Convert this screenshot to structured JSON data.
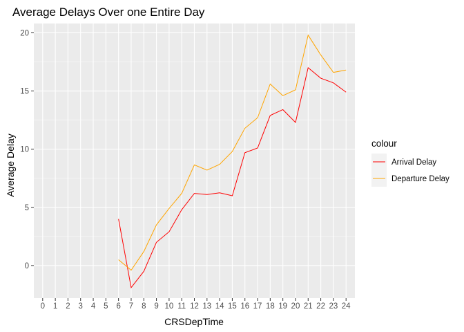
{
  "chart_data": {
    "type": "line",
    "title": "Average Delays Over one Entire Day",
    "xlabel": "CRSDepTime",
    "ylabel": "Average Delay",
    "x_ticks": [
      0,
      1,
      2,
      3,
      4,
      5,
      6,
      7,
      8,
      9,
      10,
      11,
      12,
      13,
      14,
      15,
      16,
      17,
      18,
      19,
      20,
      21,
      22,
      23,
      24
    ],
    "y_ticks": [
      0,
      5,
      10,
      15,
      20
    ],
    "xlim": [
      -0.7,
      24.7
    ],
    "ylim": [
      -2.8,
      20.8
    ],
    "grid": true,
    "legend": {
      "title": "colour",
      "position": "right"
    },
    "series": [
      {
        "name": "Arrival Delay",
        "color": "#ff0000",
        "x": [
          6,
          7,
          8,
          9,
          10,
          11,
          12,
          13,
          14,
          15,
          16,
          17,
          18,
          19,
          20,
          21,
          22,
          23,
          24
        ],
        "y": [
          4.0,
          -1.9,
          -0.5,
          2.0,
          2.9,
          4.8,
          6.2,
          6.1,
          6.25,
          6.0,
          9.7,
          10.1,
          12.9,
          13.4,
          12.3,
          17.0,
          16.1,
          15.7,
          14.9
        ]
      },
      {
        "name": "Departure Delay",
        "color": "#ffa500",
        "x": [
          6,
          7,
          8,
          9,
          10,
          11,
          12,
          13,
          14,
          15,
          16,
          17,
          18,
          19,
          20,
          21,
          22,
          23,
          24
        ],
        "y": [
          0.5,
          -0.4,
          1.2,
          3.5,
          4.9,
          6.2,
          8.65,
          8.2,
          8.7,
          9.8,
          11.8,
          12.7,
          15.6,
          14.6,
          15.1,
          19.8,
          18.1,
          16.6,
          16.8
        ]
      }
    ]
  }
}
